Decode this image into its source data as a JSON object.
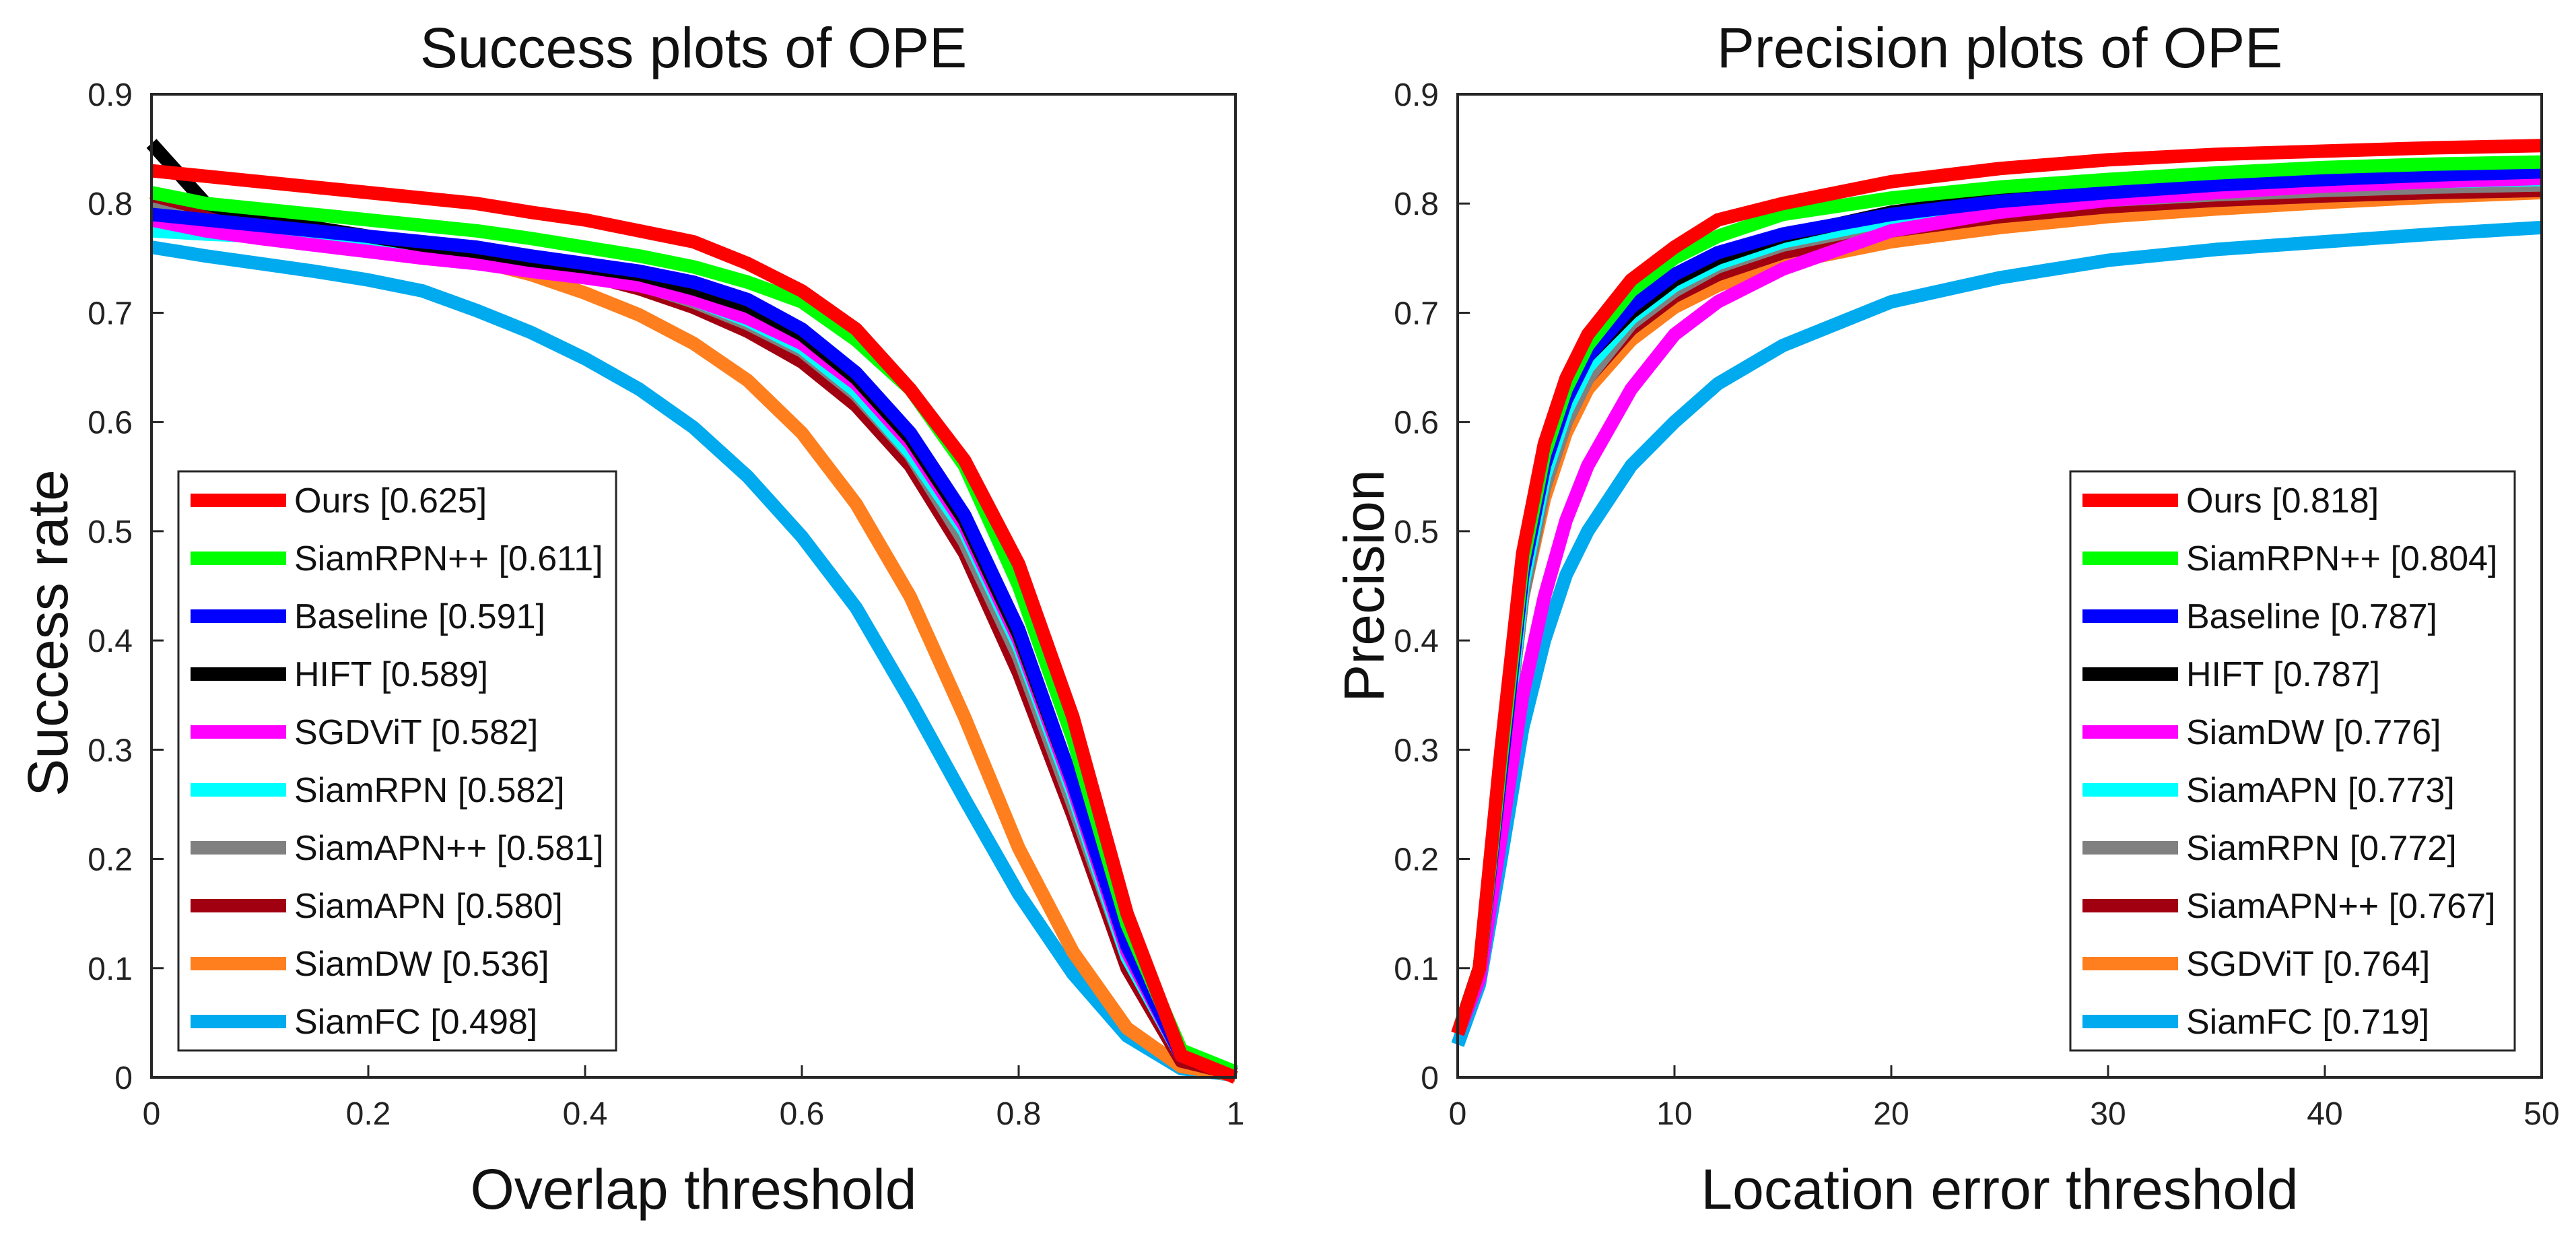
{
  "chart_data": [
    {
      "type": "line",
      "title": "Success plots of OPE",
      "xlabel": "Overlap threshold",
      "ylabel": "Success rate",
      "xlim": [
        0,
        1
      ],
      "ylim": [
        0,
        0.9
      ],
      "xticks": [
        0,
        0.2,
        0.4,
        0.6,
        0.8,
        1
      ],
      "xtick_labels": [
        "0",
        "0.2",
        "0.4",
        "0.6",
        "0.8",
        "1"
      ],
      "yticks": [
        0,
        0.1,
        0.2,
        0.3,
        0.4,
        0.5,
        0.6,
        0.7,
        0.8,
        0.9
      ],
      "ytick_labels": [
        "0",
        "0.1",
        "0.2",
        "0.3",
        "0.4",
        "0.5",
        "0.6",
        "0.7",
        "0.8",
        "0.9"
      ],
      "legend_position": "bottom-left",
      "x": [
        0,
        0.05,
        0.1,
        0.15,
        0.2,
        0.25,
        0.3,
        0.35,
        0.4,
        0.45,
        0.5,
        0.55,
        0.6,
        0.65,
        0.7,
        0.75,
        0.8,
        0.85,
        0.9,
        0.95,
        1.0
      ],
      "series": [
        {
          "name": "Ours",
          "score": "[0.625]",
          "color": "#ff0000",
          "values": [
            0.83,
            0.825,
            0.82,
            0.815,
            0.81,
            0.805,
            0.8,
            0.792,
            0.785,
            0.775,
            0.765,
            0.745,
            0.72,
            0.685,
            0.63,
            0.565,
            0.47,
            0.33,
            0.15,
            0.02,
            0.0
          ]
        },
        {
          "name": "SiamRPN++",
          "score": "[0.611]",
          "color": "#00ff00",
          "values": [
            0.81,
            0.8,
            0.795,
            0.79,
            0.785,
            0.78,
            0.775,
            0.768,
            0.76,
            0.752,
            0.742,
            0.728,
            0.71,
            0.675,
            0.63,
            0.56,
            0.45,
            0.31,
            0.14,
            0.025,
            0.005
          ]
        },
        {
          "name": "Baseline",
          "score": "[0.591]",
          "color": "#0000ff",
          "values": [
            0.79,
            0.785,
            0.78,
            0.775,
            0.77,
            0.765,
            0.76,
            0.752,
            0.745,
            0.738,
            0.728,
            0.712,
            0.685,
            0.645,
            0.59,
            0.515,
            0.41,
            0.27,
            0.12,
            0.02,
            0.005
          ]
        },
        {
          "name": "HIFT",
          "score": "[0.589]",
          "color": "#000000",
          "values": [
            0.855,
            0.8,
            0.785,
            0.778,
            0.77,
            0.762,
            0.756,
            0.748,
            0.742,
            0.735,
            0.722,
            0.706,
            0.68,
            0.64,
            0.585,
            0.51,
            0.405,
            0.27,
            0.12,
            0.02,
            0.003
          ]
        },
        {
          "name": "SGDViT",
          "score": "[0.582]",
          "color": "#ff00ff",
          "values": [
            0.785,
            0.775,
            0.768,
            0.762,
            0.756,
            0.75,
            0.745,
            0.738,
            0.732,
            0.725,
            0.712,
            0.695,
            0.672,
            0.635,
            0.58,
            0.505,
            0.4,
            0.265,
            0.115,
            0.02,
            0.003
          ]
        },
        {
          "name": "SiamRPN",
          "score": "[0.582]",
          "color": "#00ffff",
          "values": [
            0.775,
            0.772,
            0.77,
            0.766,
            0.762,
            0.758,
            0.754,
            0.746,
            0.738,
            0.728,
            0.712,
            0.693,
            0.668,
            0.628,
            0.572,
            0.5,
            0.395,
            0.26,
            0.11,
            0.02,
            0.003
          ]
        },
        {
          "name": "SiamAPN++",
          "score": "[0.581]",
          "color": "#808080",
          "values": [
            0.795,
            0.782,
            0.775,
            0.77,
            0.765,
            0.76,
            0.755,
            0.747,
            0.738,
            0.726,
            0.71,
            0.69,
            0.665,
            0.625,
            0.57,
            0.49,
            0.385,
            0.25,
            0.11,
            0.02,
            0.003
          ]
        },
        {
          "name": "SiamAPN",
          "score": "[0.580]",
          "color": "#a00010",
          "values": [
            0.8,
            0.79,
            0.782,
            0.775,
            0.768,
            0.762,
            0.755,
            0.745,
            0.735,
            0.722,
            0.705,
            0.683,
            0.655,
            0.615,
            0.56,
            0.48,
            0.37,
            0.24,
            0.1,
            0.015,
            0.003
          ]
        },
        {
          "name": "SiamDW",
          "score": "[0.536]",
          "color": "#ff7f1e",
          "values": [
            0.81,
            0.792,
            0.782,
            0.775,
            0.768,
            0.76,
            0.748,
            0.735,
            0.718,
            0.698,
            0.672,
            0.638,
            0.59,
            0.525,
            0.44,
            0.33,
            0.21,
            0.115,
            0.045,
            0.01,
            0.002
          ]
        },
        {
          "name": "SiamFC",
          "score": "[0.498]",
          "color": "#00aaee",
          "values": [
            0.76,
            0.752,
            0.745,
            0.738,
            0.73,
            0.72,
            0.702,
            0.682,
            0.658,
            0.63,
            0.595,
            0.55,
            0.495,
            0.43,
            0.345,
            0.255,
            0.168,
            0.095,
            0.038,
            0.008,
            0.002
          ]
        }
      ]
    },
    {
      "type": "line",
      "title": "Precision plots of OPE",
      "xlabel": "Location error threshold",
      "ylabel": "Precision",
      "xlim": [
        0,
        50
      ],
      "ylim": [
        0,
        0.9
      ],
      "xticks": [
        0,
        10,
        20,
        30,
        40,
        50
      ],
      "xtick_labels": [
        "0",
        "10",
        "20",
        "30",
        "40",
        "50"
      ],
      "yticks": [
        0,
        0.1,
        0.2,
        0.3,
        0.4,
        0.5,
        0.6,
        0.7,
        0.8,
        0.9
      ],
      "ytick_labels": [
        "0",
        "0.1",
        "0.2",
        "0.3",
        "0.4",
        "0.5",
        "0.6",
        "0.7",
        "0.8",
        "0.9"
      ],
      "legend_position": "bottom-right",
      "x": [
        0,
        1,
        2,
        3,
        4,
        5,
        6,
        8,
        10,
        12,
        15,
        20,
        25,
        30,
        35,
        40,
        45,
        50
      ],
      "series": [
        {
          "name": "Ours",
          "score": "[0.818]",
          "color": "#ff0000",
          "values": [
            0.04,
            0.1,
            0.3,
            0.48,
            0.58,
            0.64,
            0.68,
            0.73,
            0.76,
            0.785,
            0.8,
            0.82,
            0.832,
            0.84,
            0.845,
            0.848,
            0.851,
            0.853
          ]
        },
        {
          "name": "SiamRPN++",
          "score": "[0.804]",
          "color": "#00ff00",
          "values": [
            0.04,
            0.1,
            0.29,
            0.47,
            0.57,
            0.63,
            0.67,
            0.72,
            0.75,
            0.77,
            0.79,
            0.805,
            0.815,
            0.822,
            0.828,
            0.833,
            0.836,
            0.838
          ]
        },
        {
          "name": "Baseline",
          "score": "[0.787]",
          "color": "#0000ff",
          "values": [
            0.04,
            0.1,
            0.28,
            0.46,
            0.56,
            0.62,
            0.66,
            0.705,
            0.735,
            0.755,
            0.772,
            0.79,
            0.802,
            0.81,
            0.817,
            0.822,
            0.826,
            0.829
          ]
        },
        {
          "name": "HIFT",
          "score": "[0.787]",
          "color": "#000000",
          "values": [
            0.04,
            0.1,
            0.28,
            0.46,
            0.56,
            0.62,
            0.66,
            0.7,
            0.73,
            0.75,
            0.77,
            0.792,
            0.805,
            0.815,
            0.822,
            0.828,
            0.833,
            0.837
          ]
        },
        {
          "name": "SiamDW",
          "score": "[0.776]",
          "color": "#ff00ff",
          "values": [
            0.04,
            0.09,
            0.22,
            0.35,
            0.44,
            0.51,
            0.56,
            0.63,
            0.68,
            0.71,
            0.74,
            0.775,
            0.792,
            0.803,
            0.81,
            0.816,
            0.82,
            0.823
          ]
        },
        {
          "name": "SiamAPN",
          "score": "[0.773]",
          "color": "#00ffff",
          "values": [
            0.04,
            0.1,
            0.27,
            0.45,
            0.55,
            0.61,
            0.65,
            0.695,
            0.725,
            0.745,
            0.765,
            0.785,
            0.798,
            0.806,
            0.812,
            0.817,
            0.82,
            0.822
          ]
        },
        {
          "name": "SiamRPN",
          "score": "[0.772]",
          "color": "#808080",
          "values": [
            0.04,
            0.1,
            0.27,
            0.44,
            0.54,
            0.6,
            0.64,
            0.69,
            0.72,
            0.742,
            0.762,
            0.782,
            0.795,
            0.803,
            0.808,
            0.812,
            0.815,
            0.817
          ]
        },
        {
          "name": "SiamAPN++",
          "score": "[0.767]",
          "color": "#a00010",
          "values": [
            0.04,
            0.1,
            0.27,
            0.44,
            0.54,
            0.6,
            0.64,
            0.685,
            0.715,
            0.735,
            0.755,
            0.775,
            0.788,
            0.797,
            0.803,
            0.807,
            0.81,
            0.812
          ]
        },
        {
          "name": "SGDViT",
          "score": "[0.764]",
          "color": "#ff7f1e",
          "values": [
            0.04,
            0.1,
            0.27,
            0.44,
            0.53,
            0.59,
            0.63,
            0.675,
            0.705,
            0.725,
            0.745,
            0.765,
            0.778,
            0.788,
            0.795,
            0.801,
            0.806,
            0.81
          ]
        },
        {
          "name": "SiamFC",
          "score": "[0.719]",
          "color": "#00aaee",
          "values": [
            0.03,
            0.085,
            0.2,
            0.32,
            0.4,
            0.46,
            0.5,
            0.56,
            0.6,
            0.635,
            0.67,
            0.71,
            0.732,
            0.748,
            0.758,
            0.765,
            0.772,
            0.778
          ]
        }
      ]
    }
  ]
}
